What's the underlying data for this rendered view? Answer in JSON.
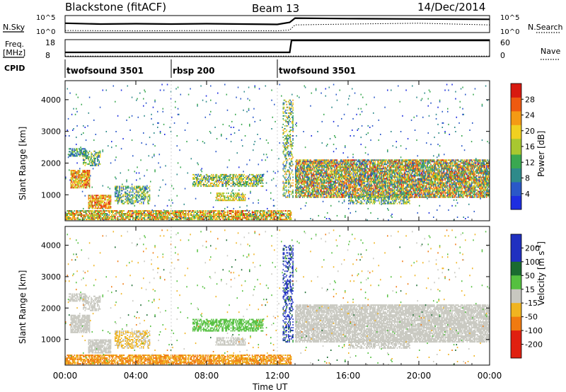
{
  "header": {
    "station": "Blackstone (fitACF)",
    "beam": "Beam 13",
    "date": "14/Dec/2014"
  },
  "panel_labels": {
    "nsky": "N.Sky",
    "nsearch": "N.Search",
    "freq_line1": "Freq.",
    "freq_line2": "[MHz]",
    "nave": "Nave",
    "cpid": "CPID"
  },
  "chart_data": [
    {
      "type": "line",
      "name": "noise",
      "left_ticks": [
        "10^5",
        "10^0"
      ],
      "right_ticks": [
        "10^5",
        "10^0"
      ],
      "series": [
        {
          "name": "N.Sky",
          "x_hours": [
            0,
            2,
            4,
            6,
            8,
            10,
            12,
            12.7,
            13,
            16,
            20,
            24
          ],
          "level": [
            0.55,
            0.5,
            0.52,
            0.5,
            0.52,
            0.5,
            0.48,
            0.6,
            0.85,
            0.82,
            0.8,
            0.78
          ]
        },
        {
          "name": "N.Search",
          "x_hours": [
            0,
            4,
            8,
            12,
            12.7,
            13,
            16,
            20,
            24
          ],
          "level": [
            0.12,
            0.1,
            0.12,
            0.1,
            0.15,
            0.45,
            0.5,
            0.55,
            0.45
          ]
        }
      ]
    },
    {
      "type": "line",
      "name": "frequency",
      "left_ticks": [
        "18",
        "8"
      ],
      "right_ticks": [
        "60",
        "0"
      ],
      "series": [
        {
          "name": "Freq.",
          "x_hours": [
            0,
            12.7,
            12.8,
            24
          ],
          "level": [
            0.25,
            0.25,
            0.95,
            0.95
          ]
        },
        {
          "name": "Nave",
          "x_hours": [
            0,
            24
          ],
          "level": [
            0.03,
            0.03
          ]
        }
      ]
    },
    {
      "type": "table",
      "name": "cpid",
      "segments": [
        {
          "label": "twofsound 3501",
          "start_hour": 0,
          "end_hour": 6
        },
        {
          "label": "rbsp 200",
          "start_hour": 6,
          "end_hour": 12
        },
        {
          "label": "twofsound 3501",
          "start_hour": 12,
          "end_hour": 24
        }
      ]
    },
    {
      "type": "heatmap",
      "name": "power",
      "ylabel": "Slant Range [km]",
      "ylim": [
        180,
        4600
      ],
      "y_ticks": [
        1000,
        2000,
        3000,
        4000
      ],
      "colorbar": {
        "title": "Power [dB]",
        "ticks": [
          4,
          8,
          12,
          16,
          20,
          24,
          28
        ],
        "range": [
          0,
          32
        ]
      },
      "blobs": [
        {
          "x0": 0,
          "x1": 12.8,
          "y0": 200,
          "y1": 500,
          "vmin": 10,
          "vmax": 30,
          "density": 0.75
        },
        {
          "x0": 0.3,
          "x1": 1.4,
          "y0": 1200,
          "y1": 1800,
          "vmin": 14,
          "vmax": 30,
          "density": 0.8
        },
        {
          "x0": 0.2,
          "x1": 1.2,
          "y0": 2200,
          "y1": 2450,
          "vmin": 4,
          "vmax": 16,
          "density": 0.6
        },
        {
          "x0": 1.0,
          "x1": 2.0,
          "y0": 1900,
          "y1": 2400,
          "vmin": 6,
          "vmax": 20,
          "density": 0.6
        },
        {
          "x0": 1.3,
          "x1": 2.6,
          "y0": 550,
          "y1": 1000,
          "vmin": 14,
          "vmax": 30,
          "density": 0.75
        },
        {
          "x0": 2.8,
          "x1": 4.8,
          "y0": 700,
          "y1": 1300,
          "vmin": 4,
          "vmax": 22,
          "density": 0.5
        },
        {
          "x0": 7.2,
          "x1": 11.2,
          "y0": 1250,
          "y1": 1650,
          "vmin": 6,
          "vmax": 24,
          "density": 0.6
        },
        {
          "x0": 8.5,
          "x1": 10.2,
          "y0": 800,
          "y1": 1050,
          "vmin": 12,
          "vmax": 24,
          "density": 0.6
        },
        {
          "x0": 12.3,
          "x1": 12.9,
          "y0": 900,
          "y1": 4000,
          "vmin": 4,
          "vmax": 24,
          "density": 0.4
        },
        {
          "x0": 13.0,
          "x1": 24,
          "y0": 900,
          "y1": 2100,
          "vmin": 4,
          "vmax": 30,
          "density": 0.8
        },
        {
          "x0": 16.0,
          "x1": 19.5,
          "y0": 700,
          "y1": 1000,
          "vmin": 4,
          "vmax": 22,
          "density": 0.55
        },
        {
          "x0": 0,
          "x1": 24,
          "y0": 180,
          "y1": 4500,
          "vmin": 2,
          "vmax": 14,
          "density": 0.015
        }
      ]
    },
    {
      "type": "heatmap",
      "name": "velocity",
      "ylabel": "Slant Range [km]",
      "ylim": [
        180,
        4600
      ],
      "y_ticks": [
        1000,
        2000,
        3000,
        4000
      ],
      "colorbar": {
        "title": "Velocity [m s^-1]",
        "ticks": [
          200,
          100,
          50,
          15,
          -15,
          -50,
          -100,
          -200
        ],
        "levels": [
          300,
          200,
          100,
          50,
          15,
          -15,
          -50,
          -100,
          -200,
          -300
        ]
      },
      "blobs": [
        {
          "x0": 0,
          "x1": 12.8,
          "y0": 200,
          "y1": 500,
          "vmin": -80,
          "vmax": -20,
          "density": 0.75
        },
        {
          "x0": 0.3,
          "x1": 1.4,
          "y0": 1200,
          "y1": 1800,
          "vmin": -10,
          "vmax": 10,
          "density": 0.8
        },
        {
          "x0": 0.2,
          "x1": 1.2,
          "y0": 2200,
          "y1": 2450,
          "vmin": -10,
          "vmax": 10,
          "density": 0.6
        },
        {
          "x0": 1.0,
          "x1": 2.0,
          "y0": 1900,
          "y1": 2400,
          "vmin": -10,
          "vmax": 10,
          "density": 0.6
        },
        {
          "x0": 1.3,
          "x1": 2.6,
          "y0": 550,
          "y1": 1000,
          "vmin": -10,
          "vmax": 10,
          "density": 0.75
        },
        {
          "x0": 2.8,
          "x1": 4.8,
          "y0": 700,
          "y1": 1300,
          "vmin": -40,
          "vmax": 10,
          "density": 0.5
        },
        {
          "x0": 7.2,
          "x1": 11.2,
          "y0": 1250,
          "y1": 1650,
          "vmin": 15,
          "vmax": 45,
          "density": 0.6
        },
        {
          "x0": 8.5,
          "x1": 10.2,
          "y0": 800,
          "y1": 1050,
          "vmin": -10,
          "vmax": 10,
          "density": 0.6
        },
        {
          "x0": 12.3,
          "x1": 12.9,
          "y0": 900,
          "y1": 4000,
          "vmin": 50,
          "vmax": 250,
          "density": 0.4
        },
        {
          "x0": 13.0,
          "x1": 24,
          "y0": 900,
          "y1": 2100,
          "vmin": -12,
          "vmax": 12,
          "density": 0.8
        },
        {
          "x0": 16.0,
          "x1": 19.5,
          "y0": 700,
          "y1": 1000,
          "vmin": -12,
          "vmax": 12,
          "density": 0.55
        },
        {
          "x0": 0,
          "x1": 24,
          "y0": 180,
          "y1": 4500,
          "vmin": -60,
          "vmax": 60,
          "density": 0.015
        }
      ]
    }
  ],
  "x_axis": {
    "label": "Time UT",
    "ticks": [
      "00:00",
      "04:00",
      "08:00",
      "12:00",
      "16:00",
      "20:00",
      "00:00"
    ],
    "range_hours": [
      0,
      24
    ]
  },
  "colors": {
    "power_scale": [
      "#1e2ee0",
      "#2a58c8",
      "#2e8a8a",
      "#3aa850",
      "#a8c830",
      "#f0d020",
      "#f49a14",
      "#ee5a10",
      "#d81a10"
    ],
    "velocity_scale": [
      "#2030c0",
      "#1a6b30",
      "#55c040",
      "#c8c8c0",
      "#f0b420",
      "#f07a10",
      "#e02010"
    ]
  }
}
